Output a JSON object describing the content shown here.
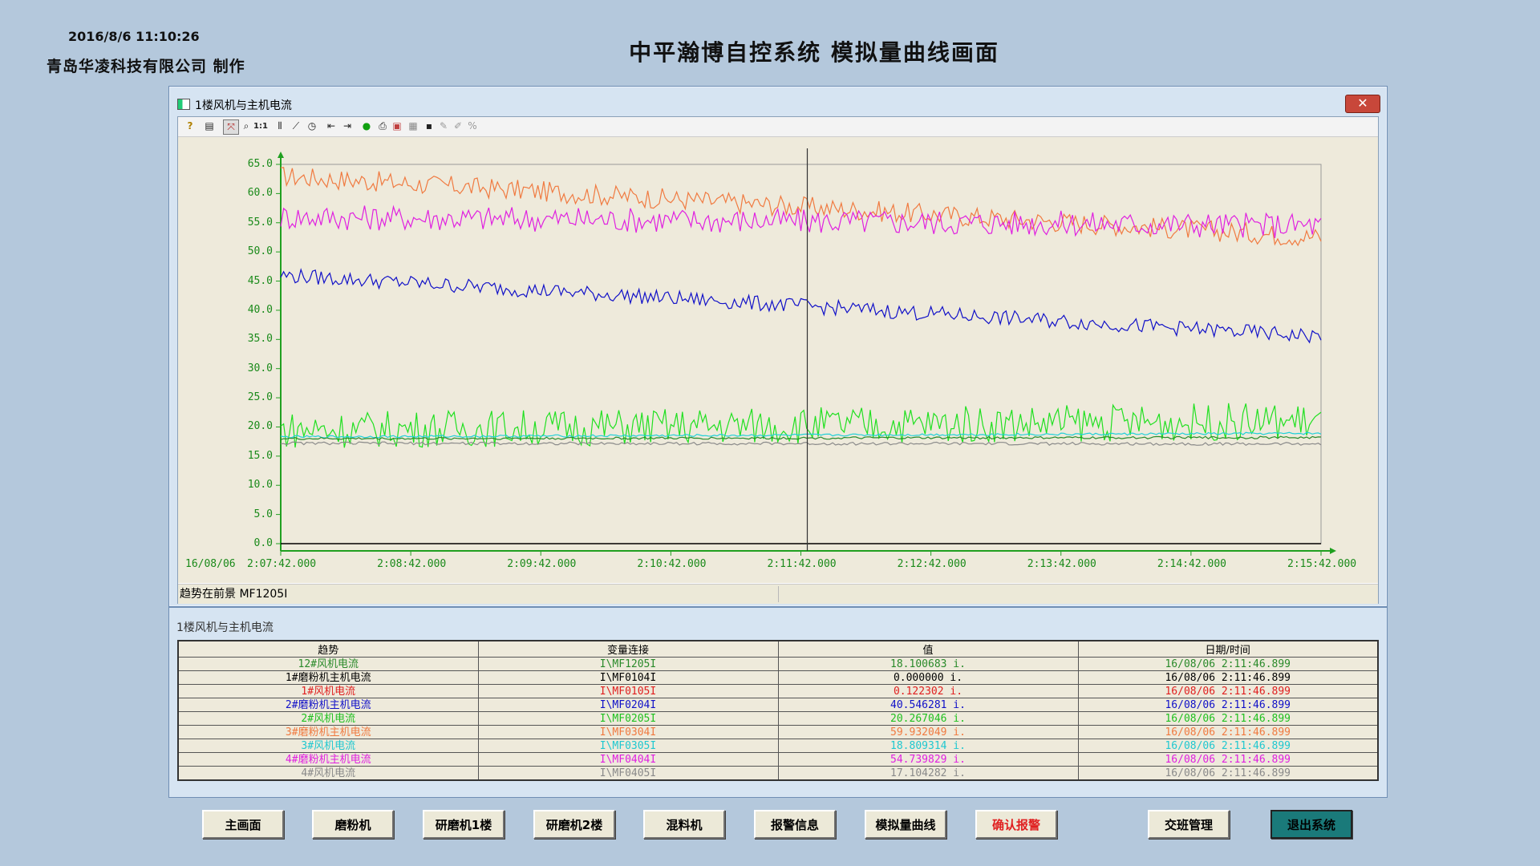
{
  "header": {
    "datetime": "2016/8/6 11:10:26",
    "company": "青岛华凌科技有限公司  制作",
    "title": "中平瀚博自控系统  模拟量曲线画面"
  },
  "trend_window": {
    "title": "1楼风机与主机电流",
    "close_icon": "close-icon",
    "status_text": "趋势在前景 MF1205I",
    "toolbar_icons": [
      "help-icon",
      "properties-icon",
      "cursor-icon",
      "zoom-icon",
      "zoom-1to1-icon",
      "bars-icon",
      "trend-icon",
      "clock-icon",
      "scroll-left-icon",
      "scroll-right-icon",
      "run-icon",
      "print-icon",
      "copy-icon",
      "export-icon",
      "save-icon",
      "pen-icon",
      "pen2-icon",
      "percent-icon"
    ],
    "toolbar_labels": {
      "zoom_reset": "1:1",
      "percent": "%"
    }
  },
  "chart_data": {
    "type": "line",
    "date_label": "16/08/06",
    "ylim": [
      0,
      65
    ],
    "y_ticks": [
      "0.0",
      "5.0",
      "10.0",
      "15.0",
      "20.0",
      "25.0",
      "30.0",
      "35.0",
      "40.0",
      "45.0",
      "50.0",
      "55.0",
      "60.0",
      "65.0"
    ],
    "x_ticks": [
      "2:07:42.000",
      "2:08:42.000",
      "2:09:42.000",
      "2:10:42.000",
      "2:11:42.000",
      "2:12:42.000",
      "2:13:42.000",
      "2:14:42.000",
      "2:15:42.000"
    ],
    "cursor_time": "2:11:42.000",
    "series": [
      {
        "name": "3#磨粉机主机电流",
        "color": "#f07a40",
        "start": 63,
        "end": 52.5,
        "noise": 1.8
      },
      {
        "name": "4#磨粉机主机电流",
        "color": "#e020e0",
        "start": 56,
        "end": 54.5,
        "noise": 2.2
      },
      {
        "name": "2#磨粉机主机电流",
        "color": "#1010c8",
        "start": 46,
        "end": 35.5,
        "noise": 1.3
      },
      {
        "name": "2#风机电流",
        "color": "#20e020",
        "start": 19.5,
        "end": 21,
        "noise": 3.2
      },
      {
        "name": "3#风机电流",
        "color": "#20d0d8",
        "start": 18.3,
        "end": 18.9,
        "noise": 0.2
      },
      {
        "name": "12#风机电流",
        "color": "#2a8a2a",
        "start": 18.0,
        "end": 18.2,
        "noise": 0.2
      },
      {
        "name": "4#风机电流",
        "color": "#8a8a8a",
        "start": 17.2,
        "end": 17.1,
        "noise": 0.25
      }
    ]
  },
  "values_panel": {
    "title": "1楼风机与主机电流",
    "columns": [
      "趋势",
      "变量连接",
      "值",
      "日期/时间"
    ],
    "rows": [
      {
        "name": "12#风机电流",
        "var": "I\\MF1205I",
        "value": "18.100683 i.",
        "time": "16/08/06 2:11:46.899",
        "color": "#2a8a2a"
      },
      {
        "name": "1#磨粉机主机电流",
        "var": "I\\MF0104I",
        "value": "0.000000 i.",
        "time": "16/08/06 2:11:46.899",
        "color": "#000000"
      },
      {
        "name": "1#风机电流",
        "var": "I\\MF0105I",
        "value": "0.122302 i.",
        "time": "16/08/06 2:11:46.899",
        "color": "#e02020"
      },
      {
        "name": "2#磨粉机主机电流",
        "var": "I\\MF0204I",
        "value": "40.546281 i.",
        "time": "16/08/06 2:11:46.899",
        "color": "#1010c8"
      },
      {
        "name": "2#风机电流",
        "var": "I\\MF0205I",
        "value": "20.267046 i.",
        "time": "16/08/06 2:11:46.899",
        "color": "#20c020"
      },
      {
        "name": "3#磨粉机主机电流",
        "var": "I\\MF0304I",
        "value": "59.932049 i.",
        "time": "16/08/06 2:11:46.899",
        "color": "#f07a40"
      },
      {
        "name": "3#风机电流",
        "var": "I\\MF0305I",
        "value": "18.809314 i.",
        "time": "16/08/06 2:11:46.899",
        "color": "#20c8d0"
      },
      {
        "name": "4#磨粉机主机电流",
        "var": "I\\MF0404I",
        "value": "54.739829 i.",
        "time": "16/08/06 2:11:46.899",
        "color": "#e020e0"
      },
      {
        "name": "4#风机电流",
        "var": "I\\MF0405I",
        "value": "17.104282 i.",
        "time": "16/08/06 2:11:46.899",
        "color": "#8a8a8a"
      }
    ]
  },
  "nav": {
    "main": "主画面",
    "mill": "磨粉机",
    "grinder1": "研磨机1楼",
    "grinder2": "研磨机2楼",
    "mixer": "混料机",
    "alarm_info": "报警信息",
    "analog_curve": "模拟量曲线",
    "confirm_alarm": "确认报警",
    "shift": "交班管理",
    "exit": "退出系统"
  }
}
